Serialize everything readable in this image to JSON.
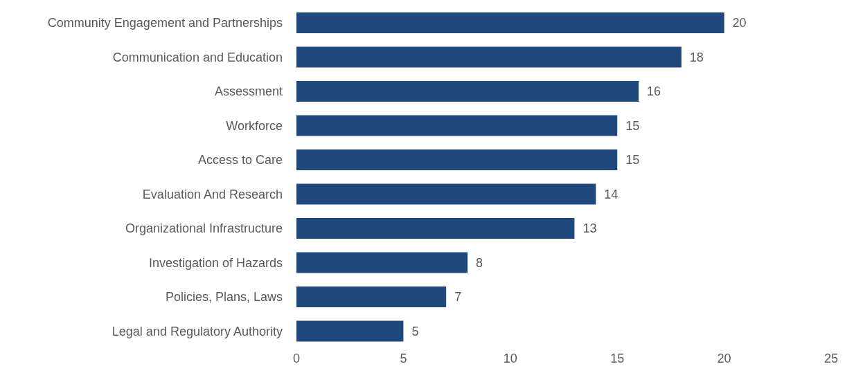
{
  "chart_data": {
    "type": "bar",
    "orientation": "horizontal",
    "categories": [
      "Community Engagement and Partnerships",
      "Communication and Education",
      "Assessment",
      "Workforce",
      "Access to Care",
      "Evaluation And Research",
      "Organizational Infrastructure",
      "Investigation of Hazards",
      "Policies, Plans, Laws",
      "Legal and Regulatory Authority"
    ],
    "values": [
      20,
      18,
      16,
      15,
      15,
      14,
      13,
      8,
      7,
      5
    ],
    "color": "#1f497d",
    "xlim": [
      0,
      25
    ],
    "xticks": [
      0,
      5,
      10,
      15,
      20,
      25
    ],
    "data_labels": true,
    "grid": false
  }
}
